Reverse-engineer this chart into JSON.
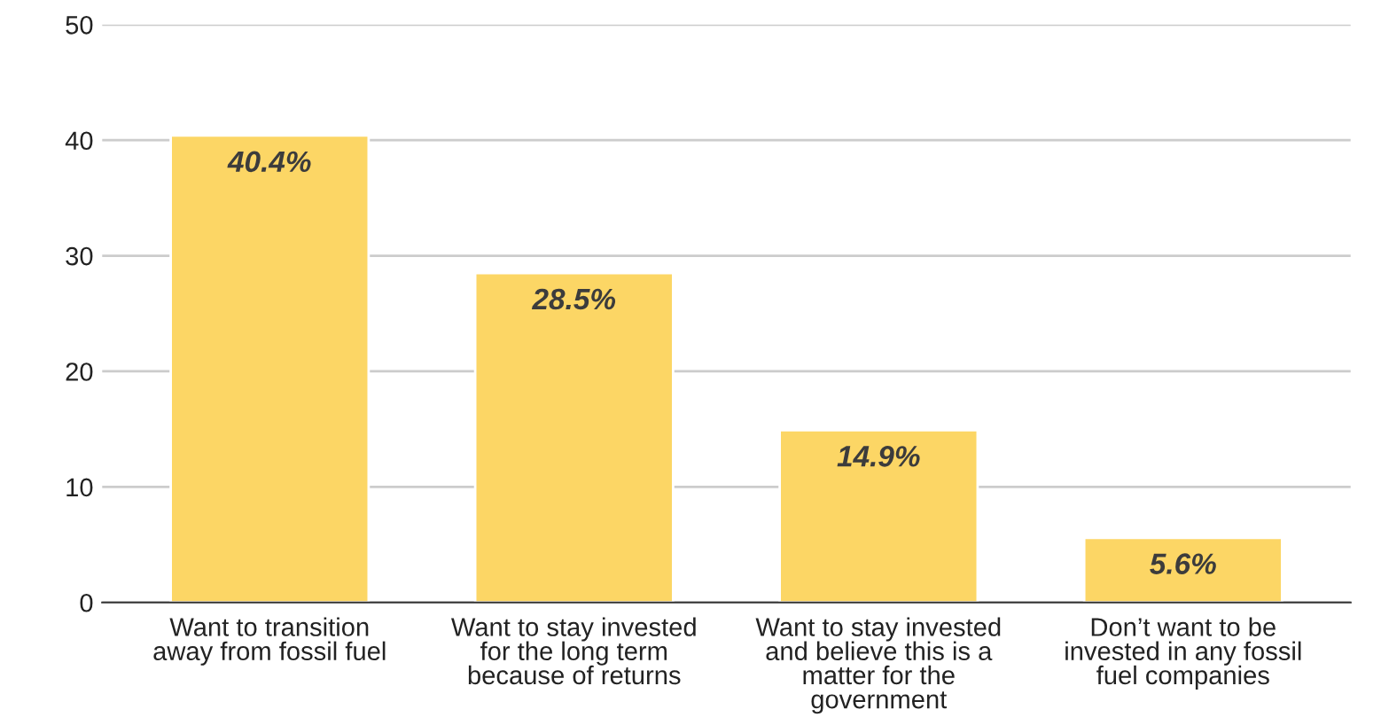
{
  "chart_data": {
    "type": "bar",
    "categories": [
      "Want to transition\naway from fossil fuel",
      "Want to stay invested\nfor the long term\nbecause of returns",
      "Want to stay invested\nand believe this is a\nmatter for the\ngovernment",
      "Don’t want to be\ninvested in any fossil\nfuel companies"
    ],
    "values": [
      40.4,
      28.5,
      14.9,
      5.6
    ],
    "value_labels": [
      "40.4%",
      "28.5%",
      "14.9%",
      "5.6%"
    ],
    "color": "#fcd665",
    "ylim": [
      0,
      50
    ],
    "yticks": [
      0,
      10,
      20,
      30,
      40,
      50
    ],
    "grid": "y"
  }
}
